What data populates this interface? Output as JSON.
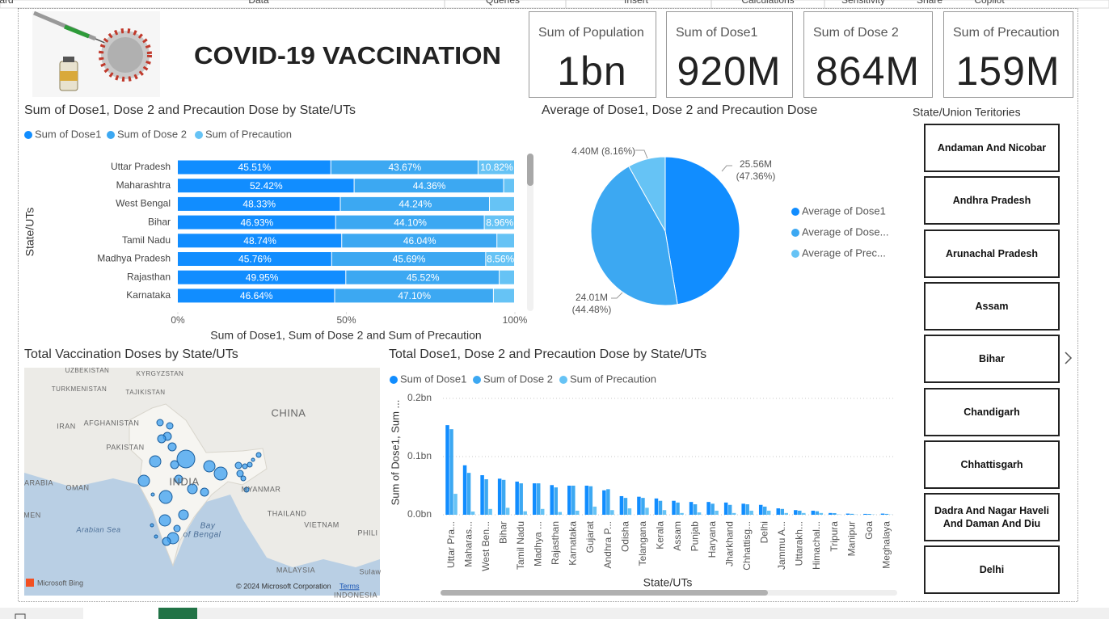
{
  "ribbon": {
    "tabs": [
      "ard",
      "Data",
      "Queries",
      "Insert",
      "Calculations",
      "Sensitivity",
      "Share",
      "Copilot"
    ]
  },
  "header": {
    "title": "COVID-19 VACCINATION"
  },
  "cards": [
    {
      "label": "Sum of Population",
      "value": "1bn"
    },
    {
      "label": "Sum of Dose1",
      "value": "920M"
    },
    {
      "label": "Sum of Dose 2",
      "value": "864M"
    },
    {
      "label": "Sum of Precaution",
      "value": "159M"
    }
  ],
  "chart_data": [
    {
      "type": "stacked100",
      "title": "Sum of Dose1, Dose 2 and Precaution Dose by State/UTs",
      "x_label": "Sum of Dose1, Sum of Dose 2 and Sum of Precaution",
      "y_label": "State/UTs",
      "categories": [
        "Uttar Pradesh",
        "Maharashtra",
        "West Bengal",
        "Bihar",
        "Tamil Nadu",
        "Madhya Pradesh",
        "Rajasthan",
        "Karnataka"
      ],
      "series": [
        {
          "name": "Sum of Dose1",
          "color": "#118DFF",
          "values": [
            45.51,
            52.42,
            48.33,
            46.93,
            48.74,
            45.76,
            49.95,
            46.64
          ],
          "value_labels": [
            "45.51%",
            "52.42%",
            "48.33%",
            "46.93%",
            "48.74%",
            "45.76%",
            "49.95%",
            "46.64%"
          ]
        },
        {
          "name": "Sum of Dose 2",
          "color": "#3CA8F2",
          "values": [
            43.67,
            44.36,
            44.24,
            44.1,
            46.04,
            45.69,
            45.52,
            47.1
          ],
          "value_labels": [
            "43.67%",
            "44.36%",
            "44.24%",
            "44.10%",
            "46.04%",
            "45.69%",
            "45.52%",
            "47.10%"
          ]
        },
        {
          "name": "Sum of Precaution",
          "color": "#66C3F5",
          "values": [
            10.82,
            3.22,
            7.43,
            8.96,
            5.22,
            8.56,
            4.53,
            6.26
          ],
          "value_labels": [
            "10.82%",
            null,
            null,
            "8.96%",
            null,
            "8.56%",
            null,
            null
          ]
        }
      ],
      "xlim": [
        0,
        100
      ],
      "xticks": [
        {
          "value": 0,
          "label": "0%"
        },
        {
          "value": 50,
          "label": "50%"
        },
        {
          "value": 100,
          "label": "100%"
        }
      ],
      "legend": "top-left"
    },
    {
      "type": "pie",
      "title": "Average of Dose1, Dose 2 and Precaution Dose",
      "categories": [
        "Average of Dose1",
        "Average of Dose...",
        "Average of Prec..."
      ],
      "values": [
        25560000,
        24010000,
        4400000
      ],
      "value_labels": [
        "25.56M (47.36%)",
        "24.01M (44.48%)",
        "4.40M (8.16%)"
      ],
      "colors": [
        "#118DFF",
        "#3CA8F2",
        "#66C3F5"
      ],
      "legend": "right"
    },
    {
      "type": "bar",
      "title": "Total Dose1, Dose 2 and Precaution Dose by State/UTs",
      "x_label": "State/UTs",
      "y_label": "Sum of Dose1, Sum ...",
      "categories": [
        "Uttar Pra...",
        "Maharas...",
        "West Ben...",
        "Bihar",
        "Tamil Nadu",
        "Madhya ...",
        "Rajasthan",
        "Karnataka",
        "Gujarat",
        "Andhra P...",
        "Odisha",
        "Telangana",
        "Kerala",
        "Assam",
        "Punjab",
        "Haryana",
        "Jharkhand",
        "Chhattisg...",
        "Delhi",
        "Jammu A...",
        "Uttarakh...",
        "Himachal...",
        "Tripura",
        "Manipur",
        "Goa",
        "Meghalaya"
      ],
      "series": [
        {
          "name": "Sum of Dose1",
          "color": "#118DFF",
          "values": [
            154000000,
            85000000,
            68000000,
            62000000,
            57000000,
            54000000,
            51000000,
            50000000,
            50000000,
            42000000,
            32000000,
            31000000,
            28000000,
            24000000,
            22000000,
            22000000,
            21000000,
            19000000,
            17000000,
            11000000,
            8000000,
            7000000,
            3000000,
            2000000,
            1500000,
            2000000
          ]
        },
        {
          "name": "Sum of Dose 2",
          "color": "#3CA8F2",
          "values": [
            147000000,
            72000000,
            61000000,
            60000000,
            54000000,
            54000000,
            47000000,
            50000000,
            49000000,
            44000000,
            29000000,
            29000000,
            24000000,
            21000000,
            18000000,
            19000000,
            17000000,
            18000000,
            14000000,
            10000000,
            7000000,
            6000000,
            2800000,
            1600000,
            1400000,
            1500000
          ]
        },
        {
          "name": "Sum of Precaution",
          "color": "#66C3F5",
          "values": [
            36000000,
            5500000,
            10000000,
            12000000,
            6000000,
            10000000,
            4700000,
            7000000,
            14000000,
            8000000,
            11000000,
            12000000,
            8000000,
            3000000,
            4000000,
            7000000,
            3000000,
            7000000,
            7000000,
            3000000,
            3000000,
            3000000,
            500000,
            300000,
            400000,
            200000
          ]
        }
      ],
      "ylim": [
        0,
        200000000
      ],
      "yticks": [
        {
          "value": 0,
          "label": "0.0bn"
        },
        {
          "value": 100000000,
          "label": "0.1bn"
        },
        {
          "value": 200000000,
          "label": "0.2bn"
        }
      ],
      "grid": true,
      "legend": "top-left"
    }
  ],
  "map": {
    "title": "Total Vaccination Doses by State/UTs",
    "labels": [
      "UZBEKISTAN",
      "KYRGYZSTAN",
      "TURKMENISTAN",
      "TAJIKISTAN",
      "AFGHANISTAN",
      "IRAN",
      "PAKISTAN",
      "CHINA",
      "INDIA",
      "MYANMAR",
      "THAILAND",
      "VIETNAM",
      "OMAN",
      "ARABIA",
      "MEN",
      "Arabian Sea",
      "Bay",
      "of Bengal",
      "PHILI",
      "MALAYSIA",
      "Sulaw",
      "INDONESIA"
    ],
    "bing": "Microsoft Bing",
    "copyright": "© 2024 Microsoft Corporation",
    "terms": "Terms"
  },
  "slicer": {
    "title": "State/Union Teritories",
    "items": [
      "Andaman And Nicobar",
      "Andhra Pradesh",
      "Arunachal Pradesh",
      "Assam",
      "Bihar",
      "Chandigarh",
      "Chhattisgarh",
      "Dadra And Nagar Haveli And Daman And Diu",
      "Delhi"
    ]
  }
}
